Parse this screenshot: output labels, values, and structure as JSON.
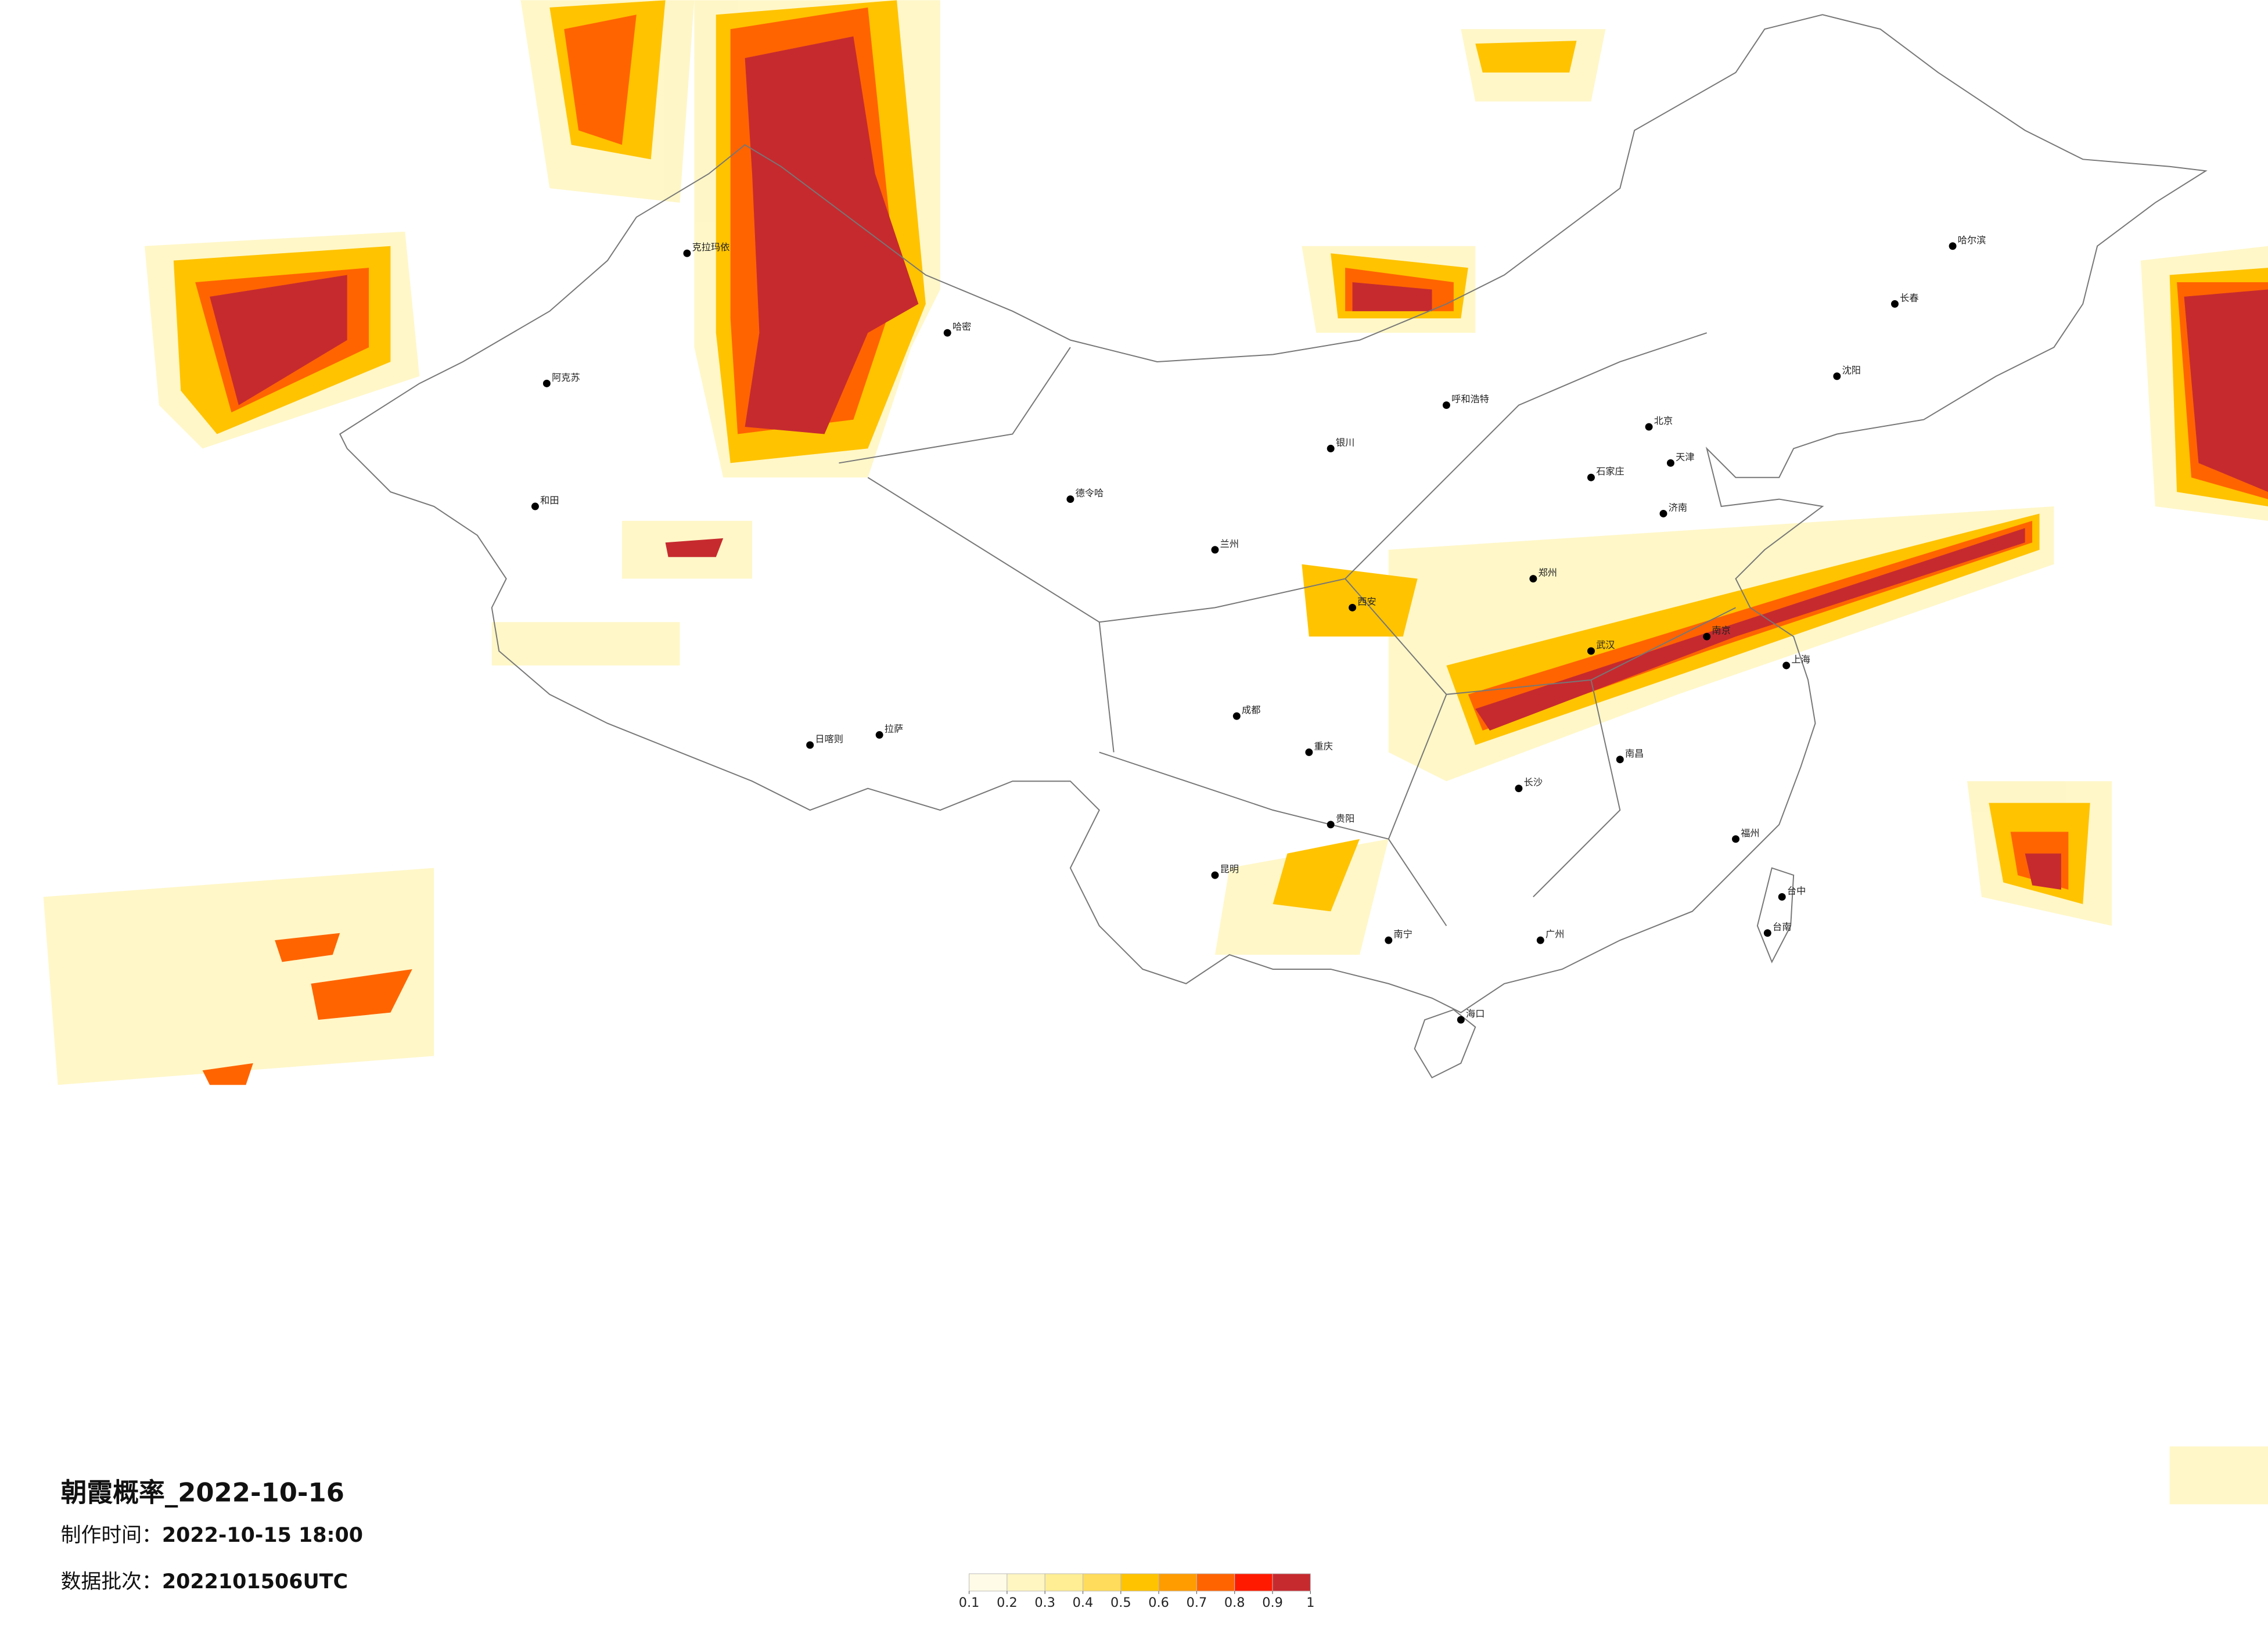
{
  "header": {
    "title": "朝霞概率_2022-10-16",
    "made_label": "制作时间：",
    "made_time": "2022-10-15 18:00",
    "batch_label": "数据批次：",
    "batch": "2022101506UTC"
  },
  "legend": {
    "ticks": [
      0.1,
      0.2,
      0.3,
      0.4,
      0.5,
      0.6,
      0.7,
      0.8,
      0.9,
      1
    ],
    "colors": [
      "#fffbe6",
      "#fff6c2",
      "#ffee94",
      "#ffdc5c",
      "#ffc300",
      "#ff9c00",
      "#ff6400",
      "#ff1a00",
      "#c62a2f"
    ]
  },
  "cities": [
    "克拉玛依",
    "阿克苏",
    "和田",
    "哈密",
    "德令哈",
    "拉萨",
    "日喀则",
    "呼和浩特",
    "北京",
    "天津",
    "石家庄",
    "济南",
    "郑州",
    "西安",
    "兰州",
    "银川",
    "成都",
    "重庆",
    "武汉",
    "南京",
    "上海",
    "长沙",
    "南昌",
    "福州",
    "广州",
    "南宁",
    "昆明",
    "贵阳",
    "哈尔滨",
    "长春",
    "沈阳",
    "海口",
    "台中",
    "台南"
  ]
}
